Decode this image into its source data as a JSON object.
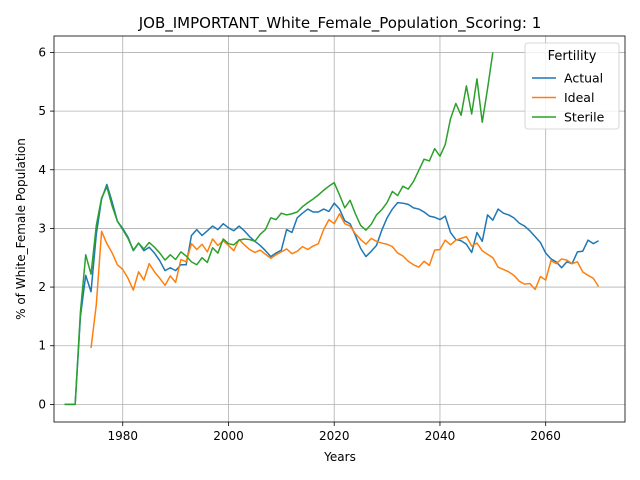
{
  "chart_data": {
    "type": "line",
    "title": "JOB_IMPORTANT_White_Female_Population_Scoring: 1",
    "xlabel": "Years",
    "ylabel": "% of White_Female Population",
    "xlim": [
      1967,
      2075
    ],
    "ylim": [
      -0.3,
      6.28
    ],
    "x_ticks": [
      1980,
      2000,
      2020,
      2040,
      2060
    ],
    "y_ticks": [
      0,
      1,
      2,
      3,
      4,
      5,
      6
    ],
    "grid": true,
    "legend": {
      "title": "Fertility",
      "placement": "top-right"
    },
    "series": [
      {
        "name": "Actual",
        "color": "#1f77b4",
        "points": [
          [
            1969,
            0
          ],
          [
            1970,
            0
          ],
          [
            1971,
            0
          ],
          [
            1972,
            1.5
          ],
          [
            1973,
            2.2
          ],
          [
            1974,
            1.92
          ],
          [
            1975,
            2.9
          ],
          [
            1976,
            3.5
          ],
          [
            1977,
            3.75
          ],
          [
            1978,
            3.45
          ],
          [
            1979,
            3.12
          ],
          [
            1980,
            3.0
          ],
          [
            1981,
            2.85
          ],
          [
            1982,
            2.62
          ],
          [
            1983,
            2.75
          ],
          [
            1984,
            2.62
          ],
          [
            1985,
            2.68
          ],
          [
            1986,
            2.58
          ],
          [
            1987,
            2.45
          ],
          [
            1988,
            2.28
          ],
          [
            1989,
            2.33
          ],
          [
            1990,
            2.28
          ],
          [
            1991,
            2.38
          ],
          [
            1992,
            2.38
          ],
          [
            1993,
            2.88
          ],
          [
            1994,
            2.98
          ],
          [
            1995,
            2.88
          ],
          [
            1996,
            2.96
          ],
          [
            1997,
            3.04
          ],
          [
            1998,
            2.98
          ],
          [
            1999,
            3.08
          ],
          [
            2000,
            3.01
          ],
          [
            2001,
            2.96
          ],
          [
            2002,
            3.04
          ],
          [
            2003,
            2.96
          ],
          [
            2004,
            2.86
          ],
          [
            2005,
            2.78
          ],
          [
            2006,
            2.71
          ],
          [
            2007,
            2.62
          ],
          [
            2008,
            2.52
          ],
          [
            2009,
            2.58
          ],
          [
            2010,
            2.63
          ],
          [
            2011,
            2.98
          ],
          [
            2012,
            2.93
          ],
          [
            2013,
            3.18
          ],
          [
            2014,
            3.26
          ],
          [
            2015,
            3.33
          ],
          [
            2016,
            3.28
          ],
          [
            2017,
            3.28
          ],
          [
            2018,
            3.33
          ],
          [
            2019,
            3.29
          ],
          [
            2020,
            3.43
          ],
          [
            2021,
            3.33
          ],
          [
            2022,
            3.13
          ],
          [
            2023,
            3.08
          ],
          [
            2024,
            2.88
          ],
          [
            2025,
            2.66
          ],
          [
            2026,
            2.52
          ],
          [
            2027,
            2.61
          ],
          [
            2028,
            2.71
          ],
          [
            2029,
            2.97
          ],
          [
            2030,
            3.18
          ],
          [
            2031,
            3.33
          ],
          [
            2032,
            3.44
          ],
          [
            2033,
            3.43
          ],
          [
            2034,
            3.41
          ],
          [
            2035,
            3.35
          ],
          [
            2036,
            3.33
          ],
          [
            2037,
            3.28
          ],
          [
            2038,
            3.21
          ],
          [
            2039,
            3.19
          ],
          [
            2040,
            3.15
          ],
          [
            2041,
            3.21
          ],
          [
            2042,
            2.93
          ],
          [
            2043,
            2.81
          ],
          [
            2044,
            2.79
          ],
          [
            2045,
            2.73
          ],
          [
            2046,
            2.59
          ],
          [
            2047,
            2.93
          ],
          [
            2048,
            2.78
          ],
          [
            2049,
            3.23
          ],
          [
            2050,
            3.14
          ],
          [
            2051,
            3.33
          ],
          [
            2052,
            3.26
          ],
          [
            2053,
            3.23
          ],
          [
            2054,
            3.18
          ],
          [
            2055,
            3.09
          ],
          [
            2056,
            3.04
          ],
          [
            2057,
            2.96
          ],
          [
            2058,
            2.86
          ],
          [
            2059,
            2.76
          ],
          [
            2060,
            2.58
          ],
          [
            2061,
            2.48
          ],
          [
            2062,
            2.43
          ],
          [
            2063,
            2.33
          ],
          [
            2064,
            2.43
          ],
          [
            2065,
            2.4
          ],
          [
            2066,
            2.6
          ],
          [
            2067,
            2.61
          ],
          [
            2068,
            2.8
          ],
          [
            2069,
            2.74
          ],
          [
            2070,
            2.79
          ]
        ]
      },
      {
        "name": "Ideal",
        "color": "#ff7f0e",
        "points": [
          [
            1974,
            0.96
          ],
          [
            1975,
            1.7
          ],
          [
            1976,
            2.95
          ],
          [
            1977,
            2.74
          ],
          [
            1978,
            2.58
          ],
          [
            1979,
            2.38
          ],
          [
            1980,
            2.3
          ],
          [
            1981,
            2.15
          ],
          [
            1982,
            1.95
          ],
          [
            1983,
            2.26
          ],
          [
            1984,
            2.12
          ],
          [
            1985,
            2.4
          ],
          [
            1986,
            2.26
          ],
          [
            1987,
            2.15
          ],
          [
            1988,
            2.03
          ],
          [
            1989,
            2.19
          ],
          [
            1990,
            2.08
          ],
          [
            1991,
            2.47
          ],
          [
            1992,
            2.43
          ],
          [
            1993,
            2.74
          ],
          [
            1994,
            2.64
          ],
          [
            1995,
            2.73
          ],
          [
            1996,
            2.6
          ],
          [
            1997,
            2.82
          ],
          [
            1998,
            2.71
          ],
          [
            1999,
            2.79
          ],
          [
            2000,
            2.71
          ],
          [
            2001,
            2.62
          ],
          [
            2002,
            2.81
          ],
          [
            2003,
            2.72
          ],
          [
            2004,
            2.64
          ],
          [
            2005,
            2.59
          ],
          [
            2006,
            2.63
          ],
          [
            2007,
            2.56
          ],
          [
            2008,
            2.49
          ],
          [
            2009,
            2.55
          ],
          [
            2010,
            2.6
          ],
          [
            2011,
            2.65
          ],
          [
            2012,
            2.57
          ],
          [
            2013,
            2.61
          ],
          [
            2014,
            2.69
          ],
          [
            2015,
            2.64
          ],
          [
            2016,
            2.7
          ],
          [
            2017,
            2.74
          ],
          [
            2018,
            2.98
          ],
          [
            2019,
            3.15
          ],
          [
            2020,
            3.08
          ],
          [
            2021,
            3.25
          ],
          [
            2022,
            3.08
          ],
          [
            2023,
            3.04
          ],
          [
            2024,
            2.91
          ],
          [
            2025,
            2.81
          ],
          [
            2026,
            2.73
          ],
          [
            2027,
            2.83
          ],
          [
            2028,
            2.78
          ],
          [
            2029,
            2.75
          ],
          [
            2030,
            2.73
          ],
          [
            2031,
            2.69
          ],
          [
            2032,
            2.58
          ],
          [
            2033,
            2.53
          ],
          [
            2034,
            2.44
          ],
          [
            2035,
            2.38
          ],
          [
            2036,
            2.34
          ],
          [
            2037,
            2.44
          ],
          [
            2038,
            2.37
          ],
          [
            2039,
            2.63
          ],
          [
            2040,
            2.64
          ],
          [
            2041,
            2.8
          ],
          [
            2042,
            2.72
          ],
          [
            2043,
            2.8
          ],
          [
            2044,
            2.83
          ],
          [
            2045,
            2.86
          ],
          [
            2046,
            2.7
          ],
          [
            2047,
            2.75
          ],
          [
            2048,
            2.62
          ],
          [
            2049,
            2.56
          ],
          [
            2050,
            2.5
          ],
          [
            2051,
            2.34
          ],
          [
            2052,
            2.3
          ],
          [
            2053,
            2.26
          ],
          [
            2054,
            2.2
          ],
          [
            2055,
            2.1
          ],
          [
            2056,
            2.05
          ],
          [
            2057,
            2.06
          ],
          [
            2058,
            1.96
          ],
          [
            2059,
            2.18
          ],
          [
            2060,
            2.12
          ],
          [
            2061,
            2.45
          ],
          [
            2062,
            2.4
          ],
          [
            2063,
            2.48
          ],
          [
            2064,
            2.46
          ],
          [
            2065,
            2.4
          ],
          [
            2066,
            2.43
          ],
          [
            2067,
            2.26
          ],
          [
            2068,
            2.2
          ],
          [
            2069,
            2.15
          ],
          [
            2070,
            2.01
          ]
        ]
      },
      {
        "name": "Sterile",
        "color": "#2ca02c",
        "points": [
          [
            1969,
            0
          ],
          [
            1970,
            0
          ],
          [
            1971,
            0
          ],
          [
            1972,
            1.58
          ],
          [
            1973,
            2.55
          ],
          [
            1974,
            2.22
          ],
          [
            1975,
            3.05
          ],
          [
            1976,
            3.52
          ],
          [
            1977,
            3.71
          ],
          [
            1978,
            3.38
          ],
          [
            1979,
            3.12
          ],
          [
            1980,
            2.98
          ],
          [
            1981,
            2.83
          ],
          [
            1982,
            2.63
          ],
          [
            1983,
            2.75
          ],
          [
            1984,
            2.65
          ],
          [
            1985,
            2.76
          ],
          [
            1986,
            2.68
          ],
          [
            1987,
            2.58
          ],
          [
            1988,
            2.46
          ],
          [
            1989,
            2.55
          ],
          [
            1990,
            2.47
          ],
          [
            1991,
            2.6
          ],
          [
            1992,
            2.53
          ],
          [
            1993,
            2.43
          ],
          [
            1994,
            2.38
          ],
          [
            1995,
            2.5
          ],
          [
            1996,
            2.42
          ],
          [
            1997,
            2.67
          ],
          [
            1998,
            2.58
          ],
          [
            1999,
            2.82
          ],
          [
            2000,
            2.74
          ],
          [
            2001,
            2.72
          ],
          [
            2002,
            2.8
          ],
          [
            2003,
            2.82
          ],
          [
            2004,
            2.81
          ],
          [
            2005,
            2.78
          ],
          [
            2006,
            2.9
          ],
          [
            2007,
            2.98
          ],
          [
            2008,
            3.18
          ],
          [
            2009,
            3.15
          ],
          [
            2010,
            3.26
          ],
          [
            2011,
            3.23
          ],
          [
            2012,
            3.25
          ],
          [
            2013,
            3.28
          ],
          [
            2014,
            3.37
          ],
          [
            2015,
            3.44
          ],
          [
            2016,
            3.5
          ],
          [
            2017,
            3.57
          ],
          [
            2018,
            3.65
          ],
          [
            2019,
            3.72
          ],
          [
            2020,
            3.78
          ],
          [
            2021,
            3.57
          ],
          [
            2022,
            3.35
          ],
          [
            2023,
            3.48
          ],
          [
            2024,
            3.25
          ],
          [
            2025,
            3.05
          ],
          [
            2026,
            2.97
          ],
          [
            2027,
            3.07
          ],
          [
            2028,
            3.23
          ],
          [
            2029,
            3.32
          ],
          [
            2030,
            3.44
          ],
          [
            2031,
            3.63
          ],
          [
            2032,
            3.56
          ],
          [
            2033,
            3.72
          ],
          [
            2034,
            3.67
          ],
          [
            2035,
            3.8
          ],
          [
            2036,
            3.99
          ],
          [
            2037,
            4.18
          ],
          [
            2038,
            4.15
          ],
          [
            2039,
            4.36
          ],
          [
            2040,
            4.23
          ],
          [
            2041,
            4.43
          ],
          [
            2042,
            4.87
          ],
          [
            2043,
            5.13
          ],
          [
            2044,
            4.93
          ],
          [
            2045,
            5.43
          ],
          [
            2046,
            4.95
          ],
          [
            2047,
            5.55
          ],
          [
            2048,
            4.81
          ],
          [
            2049,
            5.38
          ],
          [
            2050,
            6.0
          ]
        ]
      }
    ]
  }
}
